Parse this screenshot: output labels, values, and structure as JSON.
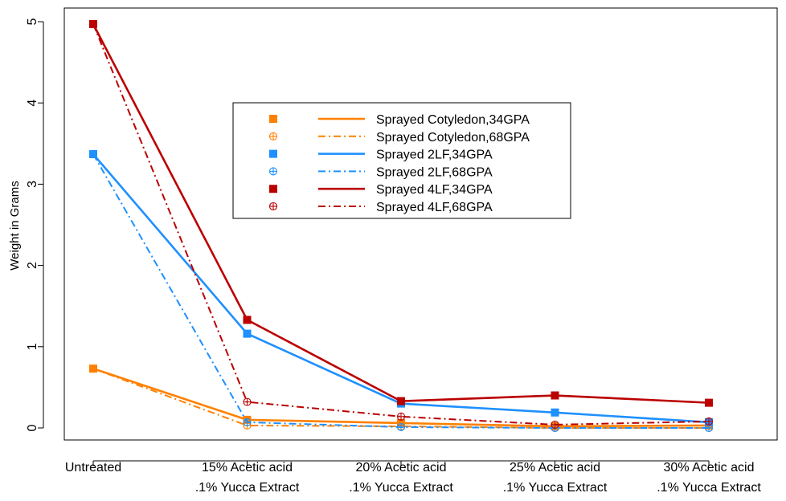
{
  "chart_data": {
    "type": "line",
    "title": "",
    "xlabel": "",
    "ylabel": "Weight in Grams",
    "ylim": [
      -0.15,
      5.08
    ],
    "yticks": [
      0,
      1,
      2,
      3,
      4,
      5
    ],
    "grid": false,
    "legend_position": "upper-center",
    "categories": [
      [
        "Untreated"
      ],
      [
        "15% Acetic acid",
        ".1% Yucca Extract"
      ],
      [
        "20% Acetic acid",
        ".1% Yucca Extract"
      ],
      [
        "25% Acetic acid",
        ".1% Yucca Extract"
      ],
      [
        "30% Acetic acid",
        ".1% Yucca Extract"
      ]
    ],
    "series": [
      {
        "name": "Sprayed Cotyledon,34GPA",
        "color": "#FF8000",
        "line": "solid",
        "marker": "square",
        "values": [
          0.73,
          0.1,
          0.06,
          0.02,
          0.03
        ]
      },
      {
        "name": "Sprayed Cotyledon,68GPA",
        "color": "#FF8000",
        "line": "dashdot",
        "marker": "circle-plus",
        "values": [
          0.73,
          0.03,
          0.02,
          0.0,
          0.0
        ]
      },
      {
        "name": "Sprayed 2LF,34GPA",
        "color": "#1E90FF",
        "line": "solid",
        "marker": "square",
        "values": [
          3.37,
          1.16,
          0.3,
          0.19,
          0.07
        ]
      },
      {
        "name": "Sprayed 2LF,68GPA",
        "color": "#1E90FF",
        "line": "dashdot",
        "marker": "circle-plus",
        "values": [
          3.37,
          0.07,
          0.01,
          0.0,
          0.0
        ]
      },
      {
        "name": "Sprayed 4LF,34GPA",
        "color": "#BB0000",
        "line": "solid",
        "marker": "square",
        "values": [
          4.97,
          1.33,
          0.33,
          0.4,
          0.31
        ]
      },
      {
        "name": "Sprayed 4LF,68GPA",
        "color": "#BB0000",
        "line": "dashdot",
        "marker": "circle-plus",
        "values": [
          4.97,
          0.32,
          0.14,
          0.04,
          0.08
        ]
      }
    ]
  }
}
